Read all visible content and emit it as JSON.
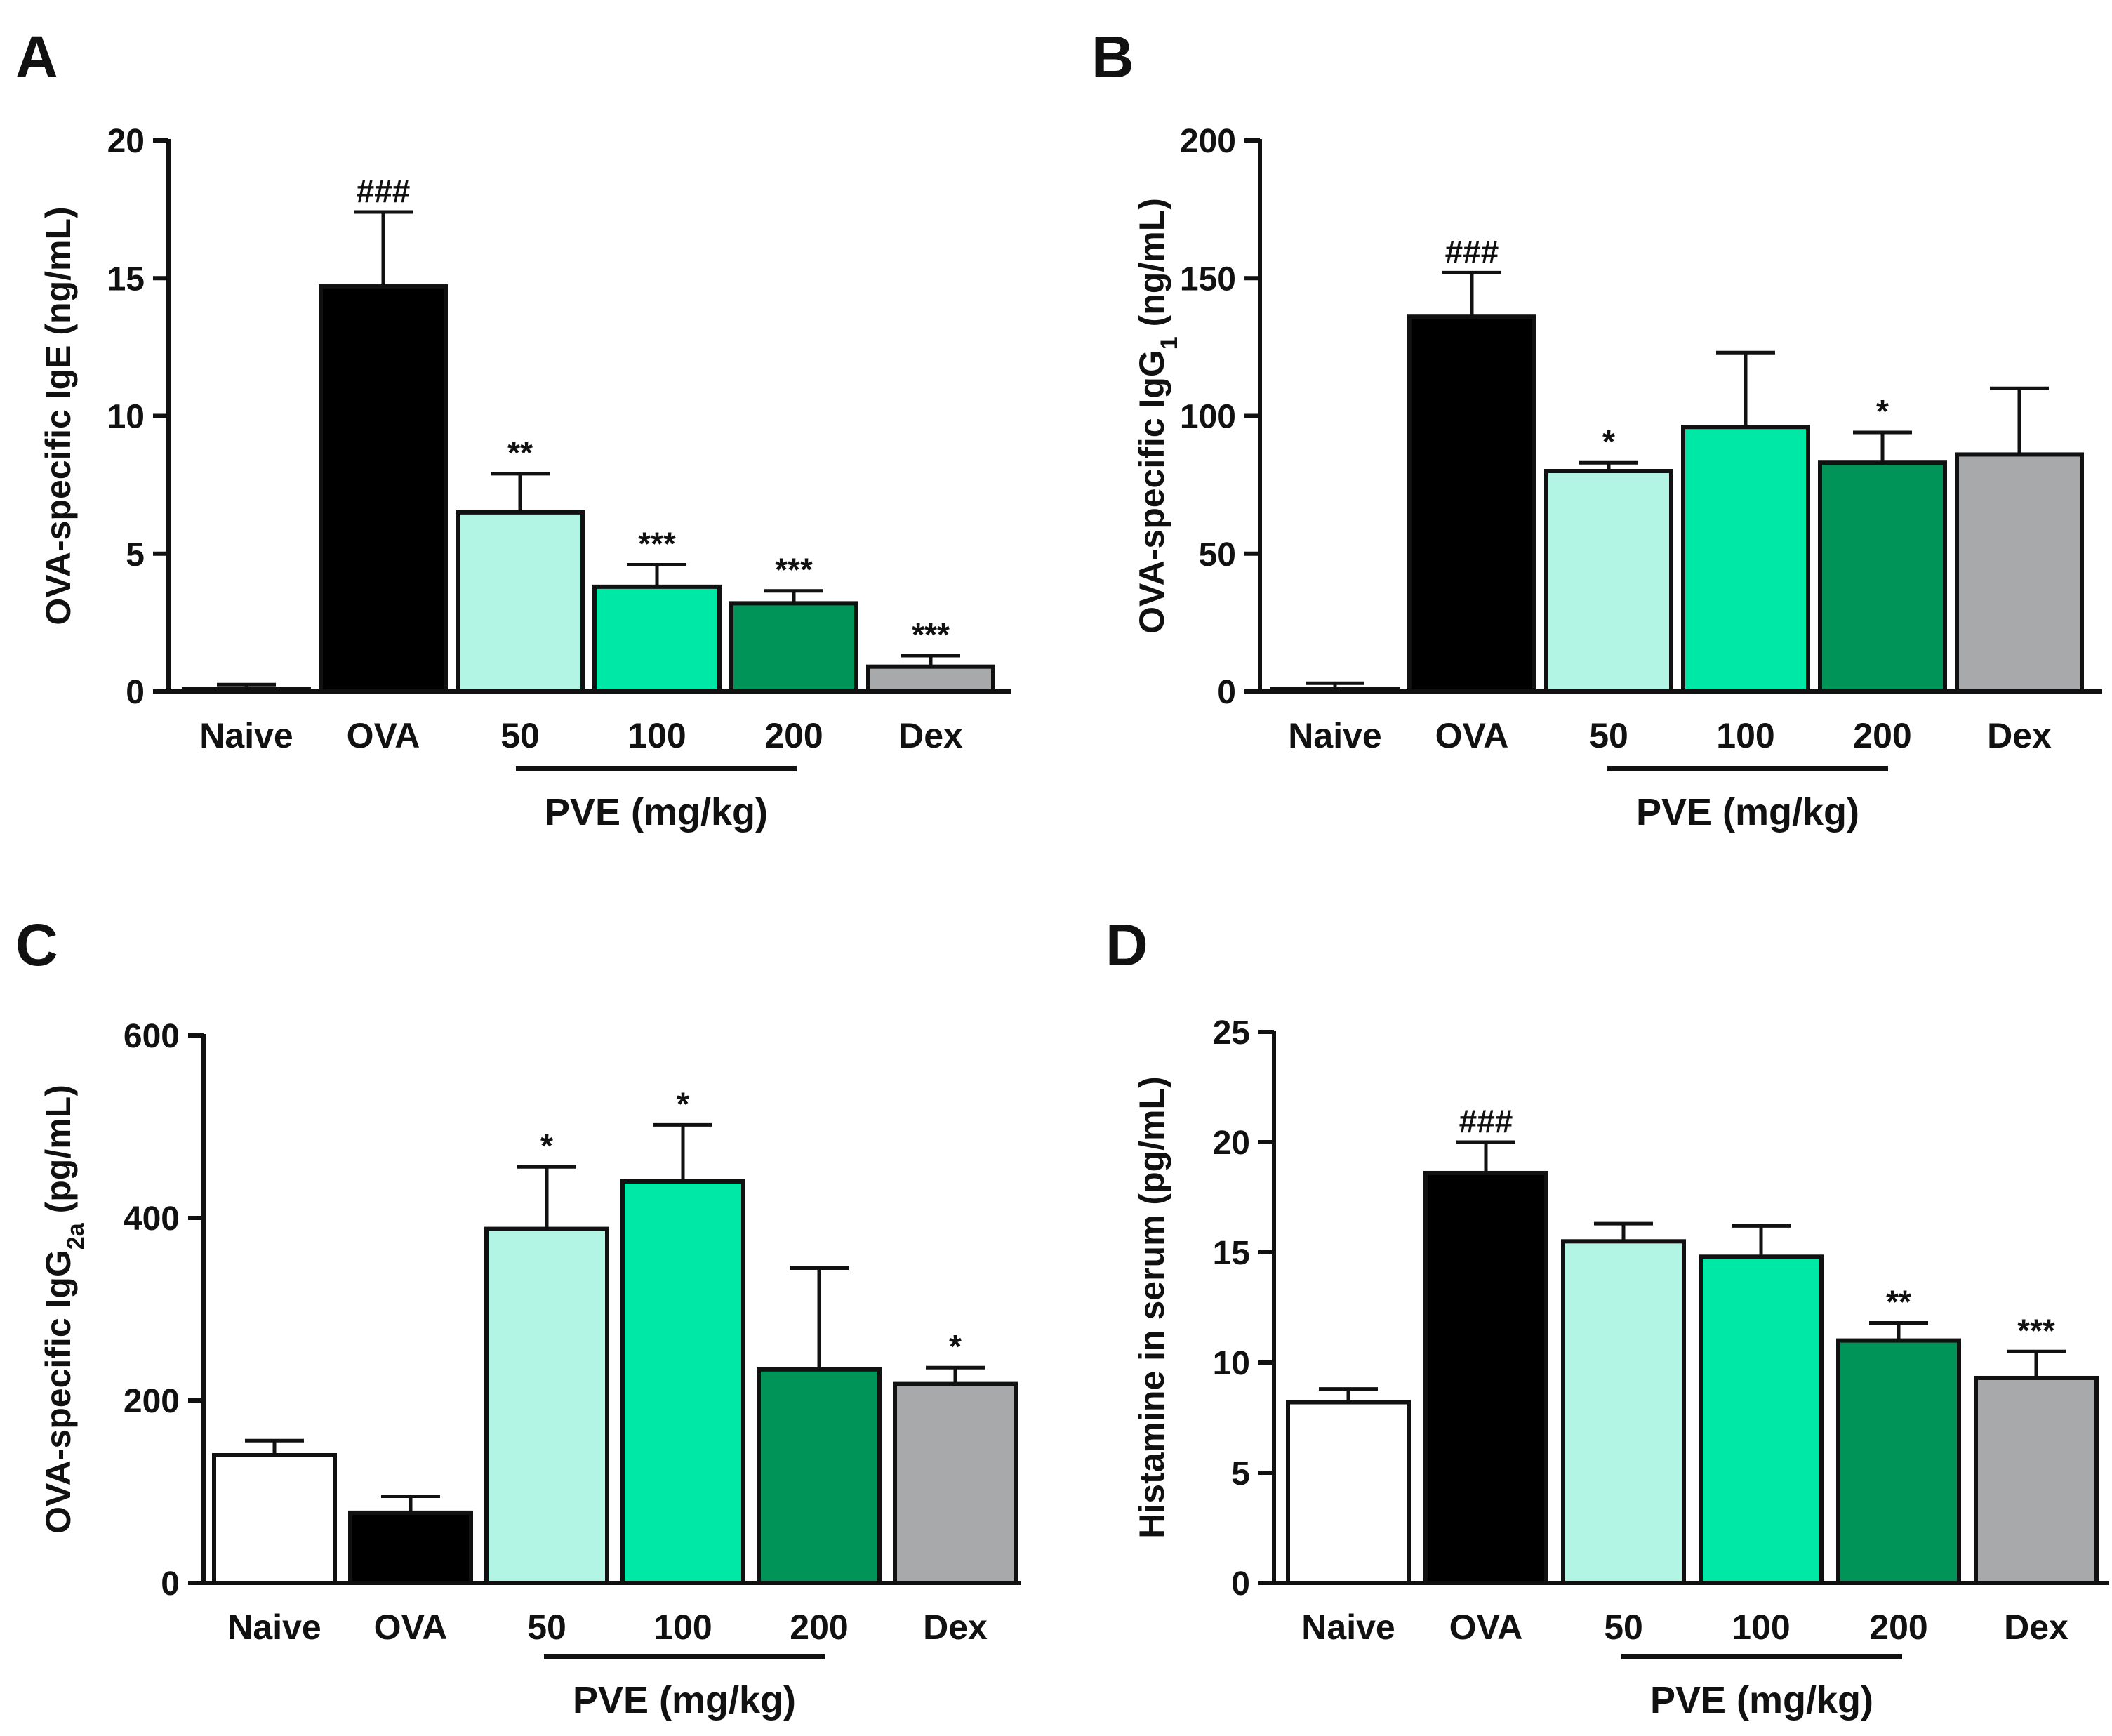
{
  "chart_data": [
    {
      "panel": "A",
      "type": "bar",
      "categories": [
        "Naive",
        "OVA",
        "50",
        "100",
        "200",
        "Dex"
      ],
      "values": [
        0.1,
        14.7,
        6.5,
        3.8,
        3.2,
        0.9
      ],
      "errors": [
        0.15,
        2.7,
        1.4,
        0.8,
        0.45,
        0.4
      ],
      "significance": [
        "",
        "###",
        "**",
        "***",
        "***",
        "***"
      ],
      "colors": [
        "#ffffff",
        "#000000",
        "#b2f5e4",
        "#00e8a6",
        "#009458",
        "#a7a9ab"
      ],
      "ylabel_parts": [
        "OVA-specific IgE (ng/mL)"
      ],
      "yticks": [
        "0",
        "5",
        "10",
        "15",
        "20"
      ],
      "ylim": [
        0,
        20
      ],
      "group_label": "PVE (mg/kg)"
    },
    {
      "panel": "B",
      "type": "bar",
      "categories": [
        "Naive",
        "OVA",
        "50",
        "100",
        "200",
        "Dex"
      ],
      "values": [
        1,
        136,
        80,
        96,
        83,
        86
      ],
      "errors": [
        2,
        16,
        3,
        27,
        11,
        24
      ],
      "significance": [
        "",
        "###",
        "*",
        "",
        "*",
        ""
      ],
      "colors": [
        "#ffffff",
        "#000000",
        "#b2f5e4",
        "#00e8a6",
        "#009458",
        "#a7a9ab"
      ],
      "ylabel_parts": [
        "OVA-specific IgG",
        "1",
        " (ng/mL)"
      ],
      "yticks": [
        "0",
        "50",
        "100",
        "150",
        "200"
      ],
      "ylim": [
        0,
        200
      ],
      "group_label": "PVE (mg/kg)"
    },
    {
      "panel": "C",
      "type": "bar",
      "categories": [
        "Naive",
        "OVA",
        "50",
        "100",
        "200",
        "Dex"
      ],
      "values": [
        140,
        77,
        388,
        440,
        234,
        218
      ],
      "errors": [
        16,
        18,
        68,
        62,
        111,
        18
      ],
      "significance": [
        "",
        "",
        "*",
        "*",
        "",
        "*"
      ],
      "colors": [
        "#ffffff",
        "#000000",
        "#b2f5e4",
        "#00e8a6",
        "#009458",
        "#a7a9ab"
      ],
      "ylabel_parts": [
        "OVA-specific IgG",
        "2a",
        " (pg/mL)"
      ],
      "yticks": [
        "0",
        "200",
        "400",
        "600"
      ],
      "ylim": [
        0,
        600
      ],
      "group_label": "PVE (mg/kg)"
    },
    {
      "panel": "D",
      "type": "bar",
      "categories": [
        "Naive",
        "OVA",
        "50",
        "100",
        "200",
        "Dex"
      ],
      "values": [
        8.2,
        18.6,
        15.5,
        14.8,
        11.0,
        9.3
      ],
      "errors": [
        0.6,
        1.4,
        0.8,
        1.4,
        0.8,
        1.2
      ],
      "significance": [
        "",
        "###",
        "",
        "",
        "**",
        "***"
      ],
      "colors": [
        "#ffffff",
        "#000000",
        "#b2f5e4",
        "#00e8a6",
        "#009458",
        "#a7a9ab"
      ],
      "ylabel_parts": [
        "Histamine in serum (pg/mL)"
      ],
      "yticks": [
        "0",
        "5",
        "10",
        "15",
        "20",
        "25"
      ],
      "ylim": [
        0,
        25
      ],
      "group_label": "PVE (mg/kg)"
    }
  ]
}
